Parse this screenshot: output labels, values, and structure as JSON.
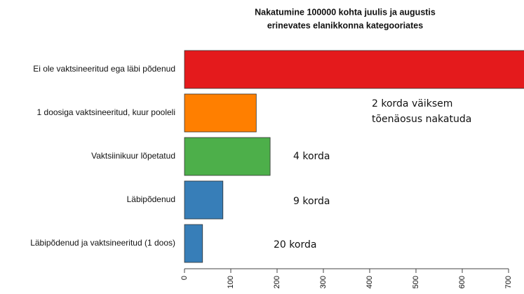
{
  "chart_data": {
    "type": "barh",
    "title": [
      "Nakatumine 100000 kohta juulis ja augustis",
      "erinevates elanikkonna kategooriates"
    ],
    "categories": [
      "Ei ole vaktsineeritud ega läbi põdenud",
      "1 doosiga vaktsineeritud, kuur pooleli",
      "Vaktsiinikuur lõpetatud",
      "Läbipõdenud",
      "Läbipõdenud ja vaktsineeritud (1 doos)"
    ],
    "values": [
      740,
      155,
      185,
      83,
      39
    ],
    "colors": [
      "#e41a1c",
      "#ff7f00",
      "#4daf4a",
      "#377eb8",
      "#377eb8"
    ],
    "annotations": [
      [
        "2 korda väiksem",
        "tõenäosus  nakatuda"
      ],
      [
        "4 korda"
      ],
      [
        "9 korda"
      ],
      [
        "20 korda"
      ]
    ],
    "xlim": [
      0,
      700
    ],
    "xticks": [
      0,
      100,
      200,
      300,
      400,
      500,
      600,
      700
    ],
    "grid": false
  }
}
